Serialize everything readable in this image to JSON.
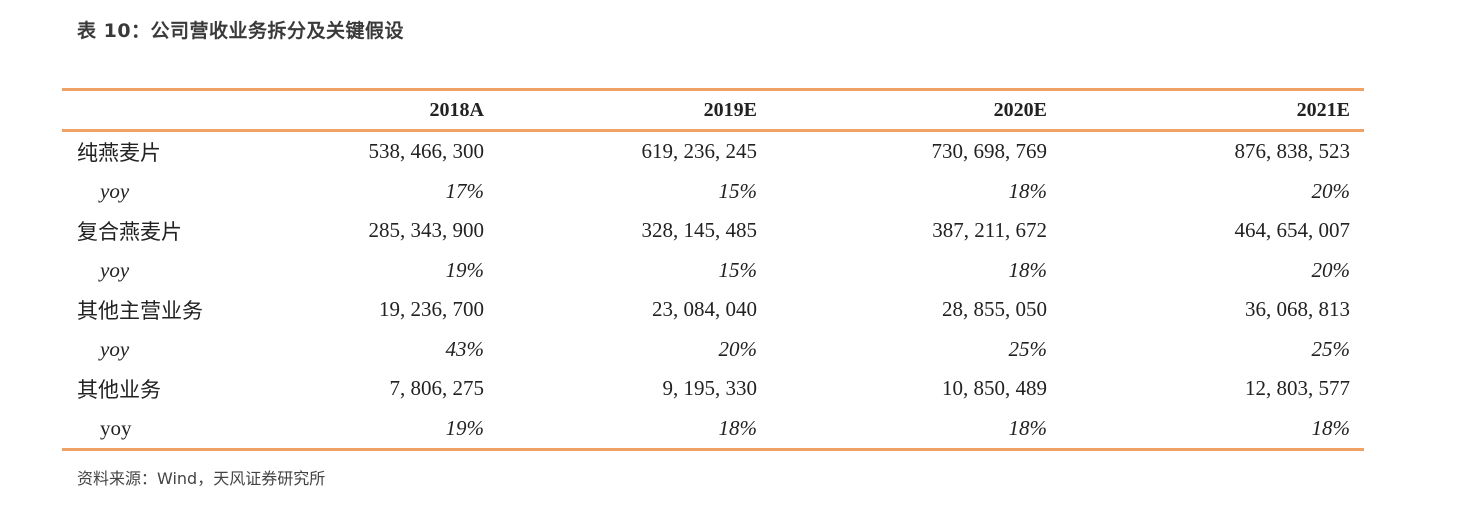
{
  "title": "表 10：公司营收业务拆分及关键假设",
  "table": {
    "headers": [
      "",
      "2018A",
      "2019E",
      "2020E",
      "2021E"
    ],
    "rows": [
      {
        "label": "纯燕麦片",
        "values": [
          "538, 466, 300",
          "619, 236, 245",
          "730, 698, 769",
          "876, 838, 523"
        ]
      },
      {
        "label": "yoy",
        "values": [
          "17%",
          "15%",
          "18%",
          "20%"
        ]
      },
      {
        "label": "复合燕麦片",
        "values": [
          "285, 343, 900",
          "328, 145, 485",
          "387, 211, 672",
          "464, 654, 007"
        ]
      },
      {
        "label": "yoy",
        "values": [
          "19%",
          "15%",
          "18%",
          "20%"
        ]
      },
      {
        "label": "其他主营业务",
        "values": [
          "19, 236, 700",
          "23, 084, 040",
          "28, 855, 050",
          "36, 068, 813"
        ]
      },
      {
        "label": "yoy",
        "values": [
          "43%",
          "20%",
          "25%",
          "25%"
        ]
      },
      {
        "label": "其他业务",
        "values": [
          "7, 806, 275",
          "9, 195, 330",
          "10, 850, 489",
          "12, 803, 577"
        ]
      },
      {
        "label": "yoy",
        "values": [
          "19%",
          "18%",
          "18%",
          "18%"
        ]
      }
    ]
  },
  "source": "资料来源：Wind，天风证券研究所",
  "colors": {
    "rule": "#f0a266",
    "text": "#222222"
  }
}
